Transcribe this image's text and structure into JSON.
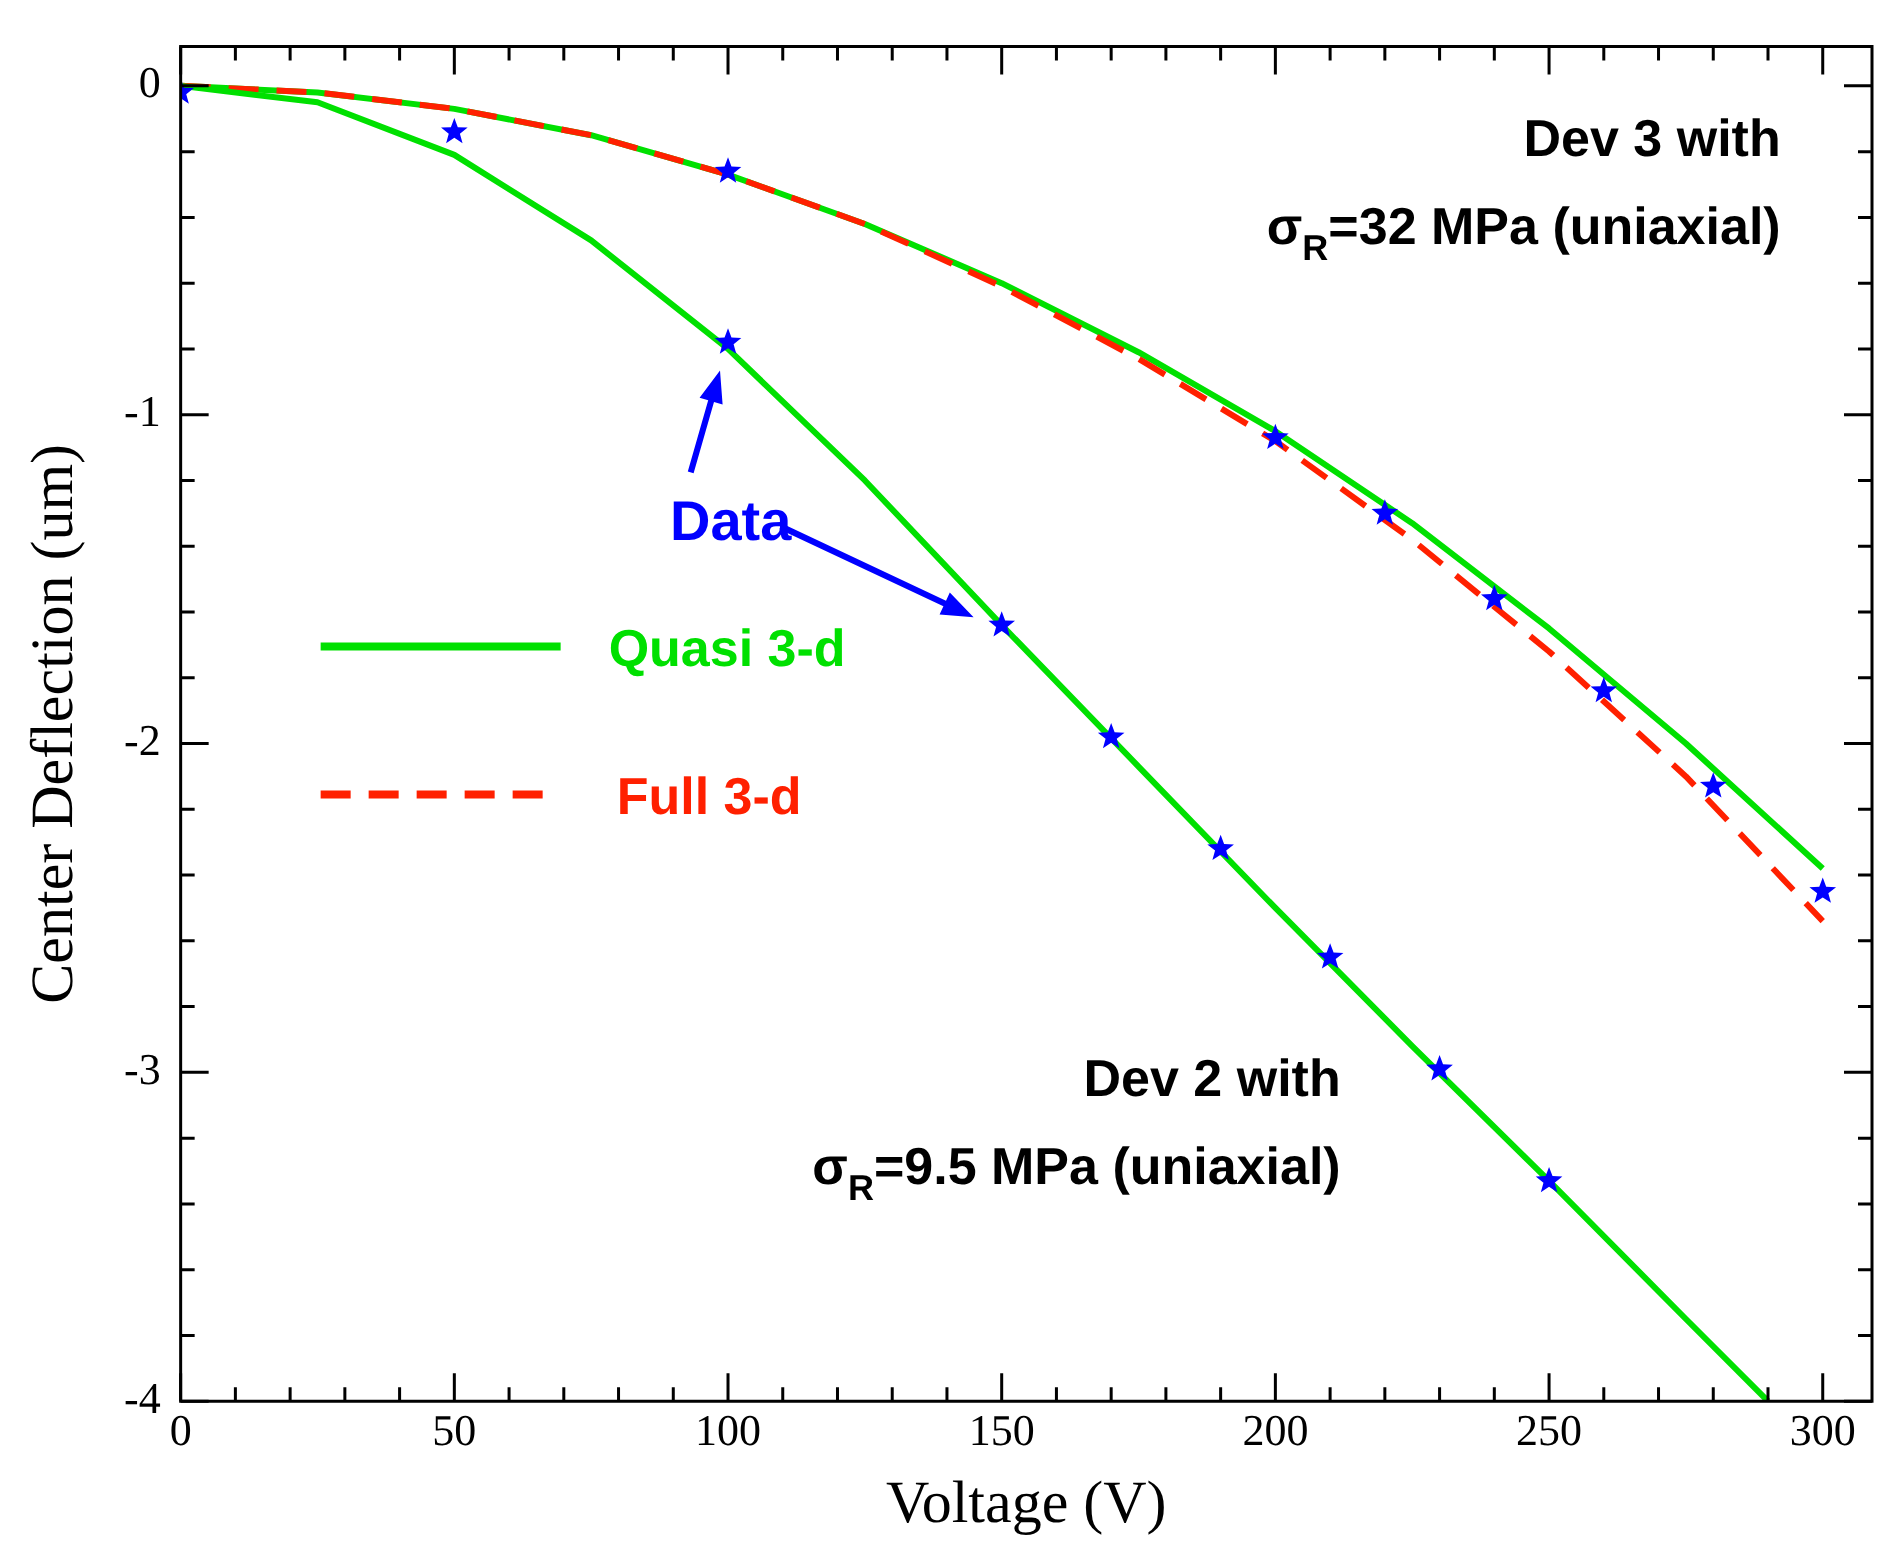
{
  "chart_data": {
    "type": "line",
    "xlabel": "Voltage (V)",
    "ylabel": "Center Deflection (um)",
    "xlim": [
      0,
      309
    ],
    "ylim": [
      -4,
      0.12
    ],
    "xticks": [
      0,
      {
        "value": 10,
        "label": null
      },
      {
        "value": 20,
        "label": null
      },
      {
        "value": 30,
        "label": null
      },
      {
        "value": 40,
        "label": null
      },
      50,
      {
        "value": 60,
        "label": null
      },
      {
        "value": 70,
        "label": null
      },
      {
        "value": 80,
        "label": null
      },
      {
        "value": 90,
        "label": null
      },
      100,
      {
        "value": 110,
        "label": null
      },
      {
        "value": 120,
        "label": null
      },
      {
        "value": 130,
        "label": null
      },
      {
        "value": 140,
        "label": null
      },
      150,
      {
        "value": 160,
        "label": null
      },
      {
        "value": 170,
        "label": null
      },
      {
        "value": 180,
        "label": null
      },
      {
        "value": 190,
        "label": null
      },
      200,
      {
        "value": 210,
        "label": null
      },
      {
        "value": 220,
        "label": null
      },
      {
        "value": 230,
        "label": null
      },
      {
        "value": 240,
        "label": null
      },
      250,
      {
        "value": 260,
        "label": null
      },
      {
        "value": 270,
        "label": null
      },
      {
        "value": 280,
        "label": null
      },
      {
        "value": 290,
        "label": null
      },
      300
    ],
    "yticks": [
      -4,
      {
        "value": -3.8,
        "label": null
      },
      {
        "value": -3.6,
        "label": null
      },
      {
        "value": -3.4,
        "label": null
      },
      {
        "value": -3.2,
        "label": null
      },
      -3,
      {
        "value": -2.8,
        "label": null
      },
      {
        "value": -2.6,
        "label": null
      },
      {
        "value": -2.4,
        "label": null
      },
      {
        "value": -2.2,
        "label": null
      },
      -2,
      {
        "value": -1.8,
        "label": null
      },
      {
        "value": -1.6,
        "label": null
      },
      {
        "value": -1.4,
        "label": null
      },
      {
        "value": -1.2,
        "label": null
      },
      -1,
      {
        "value": -0.8,
        "label": null
      },
      {
        "value": -0.6,
        "label": null
      },
      {
        "value": -0.4,
        "label": null
      },
      {
        "value": -0.2,
        "label": null
      },
      0
    ],
    "grid": false,
    "legend": "left",
    "series": [
      {
        "name": "Quasi 3-d",
        "color": "#00e000",
        "line_style": "solid",
        "marker": "none",
        "x": [
          0,
          25,
          50,
          75,
          100,
          125,
          150,
          175,
          200,
          225,
          250,
          275,
          300
        ],
        "values": [
          0,
          -0.02,
          -0.07,
          -0.15,
          -0.27,
          -0.42,
          -0.6,
          -0.81,
          -1.05,
          -1.33,
          -1.65,
          -2.0,
          -2.38
        ]
      },
      {
        "name": "Full 3-d",
        "color": "#ff2000",
        "line_style": "dashed",
        "marker": "none",
        "x": [
          0,
          25,
          50,
          75,
          100,
          125,
          150,
          175,
          200,
          225,
          250,
          275,
          300
        ],
        "values": [
          0,
          -0.02,
          -0.07,
          -0.15,
          -0.27,
          -0.42,
          -0.61,
          -0.83,
          -1.08,
          -1.38,
          -1.72,
          -2.1,
          -2.54
        ]
      },
      {
        "color": "#00e000",
        "line_style": "solid",
        "marker": "none",
        "x": [
          0,
          25,
          50,
          75,
          100,
          125,
          150,
          175,
          200,
          225,
          250,
          275,
          290
        ],
        "values": [
          0,
          -0.05,
          -0.21,
          -0.47,
          -0.8,
          -1.2,
          -1.64,
          -2.07,
          -2.5,
          -2.92,
          -3.33,
          -3.75,
          -4.0
        ]
      },
      {
        "name": "Data",
        "type": "scatter",
        "color": "#0000ff",
        "marker": "star",
        "x": [
          100,
          150,
          170,
          190,
          210,
          230,
          250,
          0,
          50,
          100,
          200,
          220,
          240,
          260,
          280,
          300
        ],
        "values": [
          -0.78,
          -1.64,
          -1.98,
          -2.32,
          -2.65,
          -2.99,
          -3.33,
          -0.02,
          -0.14,
          -0.26,
          -1.07,
          -1.3,
          -1.56,
          -1.84,
          -2.13,
          -2.45
        ]
      }
    ],
    "annotations": [
      "Dev 3 with\nσ$_{R}$=32 MPa (uniaxial)",
      "Dev 2 with\nσ$_{R}$=9.5 MPa (uniaxial)"
    ]
  }
}
